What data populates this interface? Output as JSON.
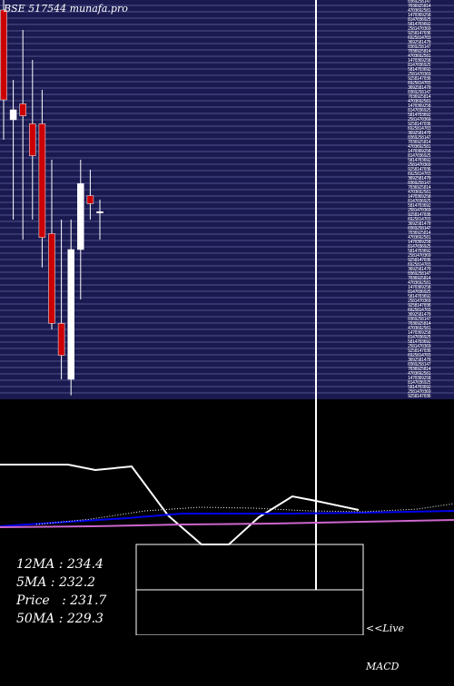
{
  "header": {
    "ticker_text": "BSE 517544  munafa.pro"
  },
  "stats": {
    "ma12_label": "12MA : 234.4",
    "ma5_label": "5MA : 232.2",
    "price_label": "Price   : 231.7",
    "ma50_label": "50MA : 229.3"
  },
  "footer": {
    "live_label": "<<Live",
    "macd_label": "MACD"
  },
  "colors": {
    "background": "#000000",
    "panel": "#1a1a50",
    "gridline": "#8888cc",
    "bull_candle": "#ffffff",
    "bear_candle": "#cc0000",
    "ma_fast": "#0000ee",
    "ma_slow": "#cc66cc",
    "ma_dotted": "#ffffff",
    "macd_line": "#ffffff"
  },
  "chart_data": {
    "type": "candlestick",
    "title": "BSE 517544  munafa.pro",
    "grid": true,
    "price_axis_side": "right",
    "ylim": [
      220,
      240
    ],
    "candles": [
      {
        "open": 239.5,
        "close": 235.0,
        "high": 240.0,
        "low": 233.0
      },
      {
        "open": 234.0,
        "close": 234.5,
        "high": 236.0,
        "low": 229.0
      },
      {
        "open": 234.8,
        "close": 234.2,
        "high": 238.5,
        "low": 228.0
      },
      {
        "open": 233.8,
        "close": 232.2,
        "high": 237.0,
        "low": 229.0
      },
      {
        "open": 233.8,
        "close": 228.1,
        "high": 235.5,
        "low": 226.6
      },
      {
        "open": 228.3,
        "close": 223.8,
        "high": 232.0,
        "low": 223.5
      },
      {
        "open": 223.8,
        "close": 222.2,
        "high": 229.0,
        "low": 221.0
      },
      {
        "open": 221.0,
        "close": 227.5,
        "high": 229.0,
        "low": 220.2
      },
      {
        "open": 227.5,
        "close": 230.8,
        "high": 232.0,
        "low": 225.0
      },
      {
        "open": 230.2,
        "close": 229.8,
        "high": 231.5,
        "low": 229.0
      },
      {
        "open": 229.4,
        "close": 229.4,
        "high": 230.0,
        "low": 228.0
      }
    ],
    "indicators": {
      "ma12": 234.4,
      "ma5": 232.2,
      "price": 231.7,
      "ma50": 229.3
    }
  }
}
